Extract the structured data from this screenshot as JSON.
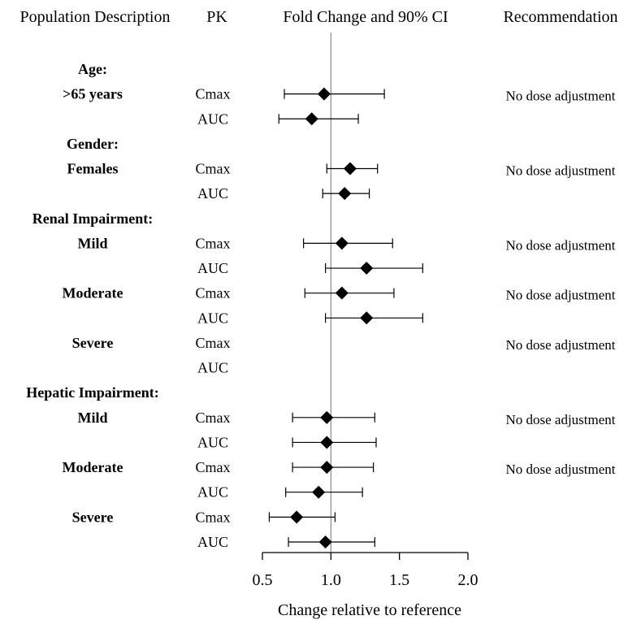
{
  "headers": {
    "population": "Population Description",
    "pk": "PK",
    "effect": "Fold Change and 90% CI",
    "recommendation": "Recommendation"
  },
  "chart_data": {
    "type": "forest",
    "xlabel": "Change relative to reference",
    "xlim": [
      0.5,
      2.0
    ],
    "xticks": [
      0.5,
      1.0,
      1.5,
      2.0
    ],
    "xtick_labels": [
      "0.5",
      "1.0",
      "1.5",
      "2.0"
    ],
    "reference_line": 1.0,
    "marker": "diamond",
    "rows": [
      {
        "label": "Age:",
        "kind": "category"
      },
      {
        "label": ">65 years",
        "kind": "group",
        "pk": "Cmax",
        "estimate": 0.95,
        "lo": 0.66,
        "hi": 1.39,
        "recommendation": "No dose adjustment"
      },
      {
        "pk": "AUC",
        "estimate": 0.86,
        "lo": 0.62,
        "hi": 1.2
      },
      {
        "label": "Gender:",
        "kind": "category"
      },
      {
        "label": "Females",
        "kind": "group",
        "pk": "Cmax",
        "estimate": 1.14,
        "lo": 0.97,
        "hi": 1.34,
        "recommendation": "No dose adjustment"
      },
      {
        "pk": "AUC",
        "estimate": 1.1,
        "lo": 0.94,
        "hi": 1.28
      },
      {
        "label": "Renal Impairment:",
        "kind": "category"
      },
      {
        "label": "Mild",
        "kind": "group",
        "pk": "Cmax",
        "estimate": 1.08,
        "lo": 0.8,
        "hi": 1.45,
        "recommendation": "No dose adjustment"
      },
      {
        "pk": "AUC",
        "estimate": 1.26,
        "lo": 0.96,
        "hi": 1.67
      },
      {
        "label": "Moderate",
        "kind": "group",
        "pk": "Cmax",
        "estimate": 1.08,
        "lo": 0.81,
        "hi": 1.46,
        "recommendation": "No dose adjustment"
      },
      {
        "pk": "AUC",
        "estimate": 1.26,
        "lo": 0.96,
        "hi": 1.67
      },
      {
        "label": "Severe",
        "kind": "group",
        "pk": "Cmax",
        "recommendation": "No dose adjustment"
      },
      {
        "pk": "AUC"
      },
      {
        "label": "Hepatic Impairment:",
        "kind": "category"
      },
      {
        "label": "Mild",
        "kind": "group",
        "pk": "Cmax",
        "estimate": 0.97,
        "lo": 0.72,
        "hi": 1.32,
        "recommendation": "No dose adjustment"
      },
      {
        "pk": "AUC",
        "estimate": 0.97,
        "lo": 0.72,
        "hi": 1.33
      },
      {
        "label": "Moderate",
        "kind": "group",
        "pk": "Cmax",
        "estimate": 0.97,
        "lo": 0.72,
        "hi": 1.31,
        "recommendation": "No dose adjustment"
      },
      {
        "pk": "AUC",
        "estimate": 0.91,
        "lo": 0.67,
        "hi": 1.23
      },
      {
        "label": "Severe",
        "kind": "group",
        "pk": "Cmax",
        "estimate": 0.75,
        "lo": 0.55,
        "hi": 1.03
      },
      {
        "pk": "AUC",
        "estimate": 0.96,
        "lo": 0.69,
        "hi": 1.32
      }
    ]
  }
}
